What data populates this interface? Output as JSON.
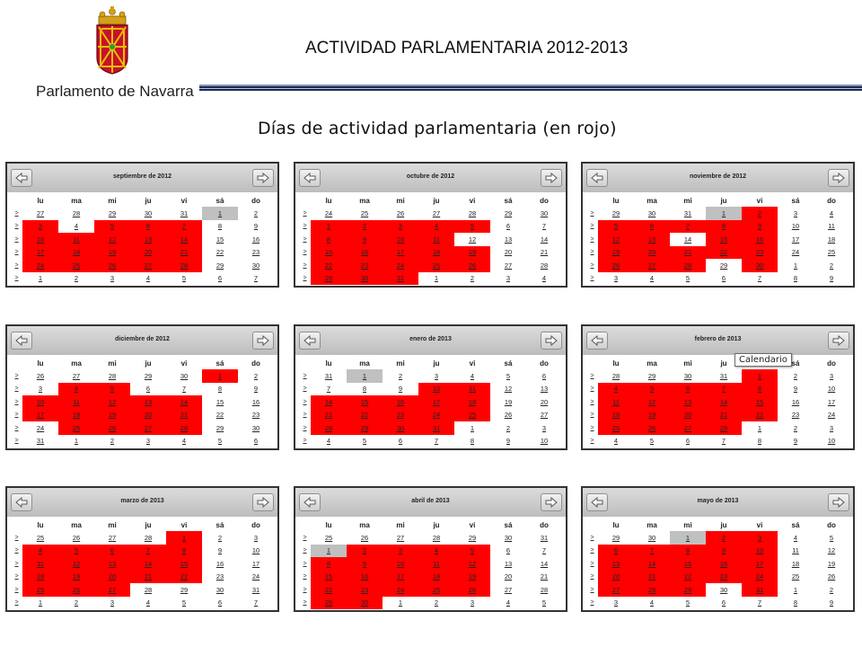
{
  "header": {
    "logo_text": "Parlamento de Navarra",
    "title": "ACTIVIDAD PARLAMENTARIA 2012-2013",
    "subtitle": "Días de actividad parlamentaria (en rojo)"
  },
  "colors": {
    "active": "#ff0000",
    "today": "#c0c0c0",
    "header_band": "#1a2a50"
  },
  "weekdays": [
    "lu",
    "ma",
    "mi",
    "ju",
    "vi",
    "sá",
    "do"
  ],
  "week_marker": ">",
  "tooltip": "Calendario",
  "calendars": [
    {
      "title": "septiembre de 2012",
      "rows": [
        [
          "27",
          "28",
          "29",
          "30",
          "31",
          "1",
          "2"
        ],
        [
          "3",
          "4",
          "5",
          "6",
          "7",
          "8",
          "9"
        ],
        [
          "10",
          "11",
          "12",
          "13",
          "14",
          "15",
          "16"
        ],
        [
          "17",
          "18",
          "19",
          "20",
          "21",
          "22",
          "23"
        ],
        [
          "24",
          "25",
          "26",
          "27",
          "28",
          "29",
          "30"
        ],
        [
          "1",
          "2",
          "3",
          "4",
          "5",
          "6",
          "7"
        ]
      ],
      "states": [
        [
          "",
          "",
          "",
          "",
          "",
          "t",
          ""
        ],
        [
          "a",
          "",
          "a",
          "a",
          "a",
          "",
          ""
        ],
        [
          "a",
          "a",
          "a",
          "a",
          "a",
          "",
          ""
        ],
        [
          "a",
          "a",
          "a",
          "a",
          "a",
          "",
          ""
        ],
        [
          "a",
          "a",
          "a",
          "a",
          "a",
          "",
          ""
        ],
        [
          "",
          "",
          "",
          "",
          "",
          "",
          ""
        ]
      ]
    },
    {
      "title": "octubre de 2012",
      "rows": [
        [
          "24",
          "25",
          "26",
          "27",
          "28",
          "29",
          "30"
        ],
        [
          "1",
          "2",
          "3",
          "4",
          "5",
          "6",
          "7"
        ],
        [
          "8",
          "9",
          "10",
          "11",
          "12",
          "13",
          "14"
        ],
        [
          "15",
          "16",
          "17",
          "18",
          "19",
          "20",
          "21"
        ],
        [
          "22",
          "23",
          "24",
          "25",
          "26",
          "27",
          "28"
        ],
        [
          "29",
          "30",
          "31",
          "1",
          "2",
          "3",
          "4"
        ]
      ],
      "states": [
        [
          "",
          "",
          "",
          "",
          "",
          "",
          ""
        ],
        [
          "a",
          "a",
          "a",
          "a",
          "a",
          "",
          ""
        ],
        [
          "a",
          "a",
          "a",
          "a",
          "",
          "",
          ""
        ],
        [
          "a",
          "a",
          "a",
          "a",
          "a",
          "",
          ""
        ],
        [
          "a",
          "a",
          "a",
          "a",
          "a",
          "",
          ""
        ],
        [
          "a",
          "a",
          "a",
          "",
          "",
          "",
          ""
        ]
      ]
    },
    {
      "title": "noviembre de 2012",
      "rows": [
        [
          "29",
          "30",
          "31",
          "1",
          "2",
          "3",
          "4"
        ],
        [
          "5",
          "6",
          "7",
          "8",
          "9",
          "10",
          "11"
        ],
        [
          "12",
          "13",
          "14",
          "15",
          "16",
          "17",
          "18"
        ],
        [
          "19",
          "20",
          "21",
          "22",
          "23",
          "24",
          "25"
        ],
        [
          "26",
          "27",
          "28",
          "29",
          "30",
          "1",
          "2"
        ],
        [
          "3",
          "4",
          "5",
          "6",
          "7",
          "8",
          "9"
        ]
      ],
      "states": [
        [
          "",
          "",
          "",
          "t",
          "a",
          "",
          ""
        ],
        [
          "a",
          "a",
          "a",
          "a",
          "a",
          "",
          ""
        ],
        [
          "a",
          "a",
          "",
          "a",
          "a",
          "",
          ""
        ],
        [
          "a",
          "a",
          "a",
          "a",
          "a",
          "",
          ""
        ],
        [
          "a",
          "a",
          "a",
          "",
          "a",
          "",
          ""
        ],
        [
          "",
          "",
          "",
          "",
          "",
          "",
          ""
        ]
      ]
    },
    {
      "title": "diciembre de 2012",
      "rows": [
        [
          "26",
          "27",
          "28",
          "29",
          "30",
          "1",
          "2"
        ],
        [
          "3",
          "4",
          "5",
          "6",
          "7",
          "8",
          "9"
        ],
        [
          "10",
          "11",
          "12",
          "13",
          "14",
          "15",
          "16"
        ],
        [
          "17",
          "18",
          "19",
          "20",
          "21",
          "22",
          "23"
        ],
        [
          "24",
          "25",
          "26",
          "27",
          "28",
          "29",
          "30"
        ],
        [
          "31",
          "1",
          "2",
          "3",
          "4",
          "5",
          "6"
        ]
      ],
      "states": [
        [
          "",
          "",
          "",
          "",
          "",
          "a",
          ""
        ],
        [
          "",
          "a",
          "a",
          "",
          "",
          "",
          ""
        ],
        [
          "a",
          "a",
          "a",
          "a",
          "a",
          "",
          ""
        ],
        [
          "a",
          "a",
          "a",
          "a",
          "a",
          "",
          ""
        ],
        [
          "",
          "a",
          "a",
          "a",
          "a",
          "",
          ""
        ],
        [
          "",
          "",
          "",
          "",
          "",
          "",
          ""
        ]
      ]
    },
    {
      "title": "enero de 2013",
      "rows": [
        [
          "31",
          "1",
          "2",
          "3",
          "4",
          "5",
          "6"
        ],
        [
          "7",
          "8",
          "9",
          "10",
          "11",
          "12",
          "13"
        ],
        [
          "14",
          "15",
          "16",
          "17",
          "18",
          "19",
          "20"
        ],
        [
          "21",
          "22",
          "23",
          "24",
          "25",
          "26",
          "27"
        ],
        [
          "28",
          "29",
          "30",
          "31",
          "1",
          "2",
          "3"
        ],
        [
          "4",
          "5",
          "6",
          "7",
          "8",
          "9",
          "10"
        ]
      ],
      "states": [
        [
          "",
          "t",
          "",
          "",
          "",
          "",
          ""
        ],
        [
          "",
          "",
          "",
          "a",
          "a",
          "",
          ""
        ],
        [
          "a",
          "a",
          "a",
          "a",
          "a",
          "",
          ""
        ],
        [
          "a",
          "a",
          "a",
          "a",
          "a",
          "",
          ""
        ],
        [
          "a",
          "a",
          "a",
          "a",
          "",
          "",
          ""
        ],
        [
          "",
          "",
          "",
          "",
          "",
          "",
          ""
        ]
      ]
    },
    {
      "title": "febrero de 2013",
      "rows": [
        [
          "28",
          "29",
          "30",
          "31",
          "1",
          "2",
          "3"
        ],
        [
          "4",
          "5",
          "6",
          "7",
          "8",
          "9",
          "10"
        ],
        [
          "11",
          "12",
          "13",
          "14",
          "15",
          "16",
          "17"
        ],
        [
          "18",
          "19",
          "20",
          "21",
          "22",
          "23",
          "24"
        ],
        [
          "25",
          "26",
          "27",
          "28",
          "1",
          "2",
          "3"
        ],
        [
          "4",
          "5",
          "6",
          "7",
          "8",
          "9",
          "10"
        ]
      ],
      "states": [
        [
          "",
          "",
          "",
          "",
          "a",
          "",
          ""
        ],
        [
          "a",
          "a",
          "a",
          "a",
          "a",
          "",
          ""
        ],
        [
          "a",
          "a",
          "a",
          "a",
          "a",
          "",
          ""
        ],
        [
          "a",
          "a",
          "a",
          "a",
          "a",
          "",
          ""
        ],
        [
          "a",
          "a",
          "a",
          "a",
          "",
          "",
          ""
        ],
        [
          "",
          "",
          "",
          "",
          "",
          "",
          ""
        ]
      ]
    },
    {
      "title": "marzo de 2013",
      "rows": [
        [
          "25",
          "26",
          "27",
          "28",
          "1",
          "2",
          "3"
        ],
        [
          "4",
          "5",
          "6",
          "7",
          "8",
          "9",
          "10"
        ],
        [
          "11",
          "12",
          "13",
          "14",
          "15",
          "16",
          "17"
        ],
        [
          "18",
          "19",
          "20",
          "21",
          "22",
          "23",
          "24"
        ],
        [
          "25",
          "26",
          "27",
          "28",
          "29",
          "30",
          "31"
        ],
        [
          "1",
          "2",
          "3",
          "4",
          "5",
          "6",
          "7"
        ]
      ],
      "states": [
        [
          "",
          "",
          "",
          "",
          "a",
          "",
          ""
        ],
        [
          "a",
          "a",
          "a",
          "a",
          "a",
          "",
          ""
        ],
        [
          "a",
          "a",
          "a",
          "a",
          "a",
          "",
          ""
        ],
        [
          "a",
          "a",
          "a",
          "a",
          "a",
          "",
          ""
        ],
        [
          "a",
          "a",
          "a",
          "",
          "",
          "",
          ""
        ],
        [
          "",
          "",
          "",
          "",
          "",
          "",
          ""
        ]
      ]
    },
    {
      "title": "abril de 2013",
      "rows": [
        [
          "25",
          "26",
          "27",
          "28",
          "29",
          "30",
          "31"
        ],
        [
          "1",
          "2",
          "3",
          "4",
          "5",
          "6",
          "7"
        ],
        [
          "8",
          "9",
          "10",
          "11",
          "12",
          "13",
          "14"
        ],
        [
          "15",
          "16",
          "17",
          "18",
          "19",
          "20",
          "21"
        ],
        [
          "22",
          "23",
          "24",
          "25",
          "26",
          "27",
          "28"
        ],
        [
          "29",
          "30",
          "1",
          "2",
          "3",
          "4",
          "5"
        ]
      ],
      "states": [
        [
          "",
          "",
          "",
          "",
          "",
          "",
          ""
        ],
        [
          "t",
          "a",
          "a",
          "a",
          "a",
          "",
          ""
        ],
        [
          "a",
          "a",
          "a",
          "a",
          "a",
          "",
          ""
        ],
        [
          "a",
          "a",
          "a",
          "a",
          "a",
          "",
          ""
        ],
        [
          "a",
          "a",
          "a",
          "a",
          "a",
          "",
          ""
        ],
        [
          "a",
          "a",
          "",
          "",
          "",
          "",
          ""
        ]
      ]
    },
    {
      "title": "mayo de 2013",
      "rows": [
        [
          "29",
          "30",
          "1",
          "2",
          "3",
          "4",
          "5"
        ],
        [
          "6",
          "7",
          "8",
          "9",
          "10",
          "11",
          "12"
        ],
        [
          "13",
          "14",
          "15",
          "16",
          "17",
          "18",
          "19"
        ],
        [
          "20",
          "21",
          "22",
          "23",
          "24",
          "25",
          "26"
        ],
        [
          "27",
          "28",
          "29",
          "30",
          "31",
          "1",
          "2"
        ],
        [
          "3",
          "4",
          "5",
          "6",
          "7",
          "8",
          "9"
        ]
      ],
      "states": [
        [
          "",
          "",
          "t",
          "a",
          "a",
          "",
          ""
        ],
        [
          "a",
          "a",
          "a",
          "a",
          "a",
          "",
          ""
        ],
        [
          "a",
          "a",
          "a",
          "a",
          "a",
          "",
          ""
        ],
        [
          "a",
          "a",
          "a",
          "a",
          "a",
          "",
          ""
        ],
        [
          "a",
          "a",
          "a",
          "",
          "a",
          "",
          ""
        ],
        [
          "",
          "",
          "",
          "",
          "",
          "",
          ""
        ]
      ]
    }
  ]
}
